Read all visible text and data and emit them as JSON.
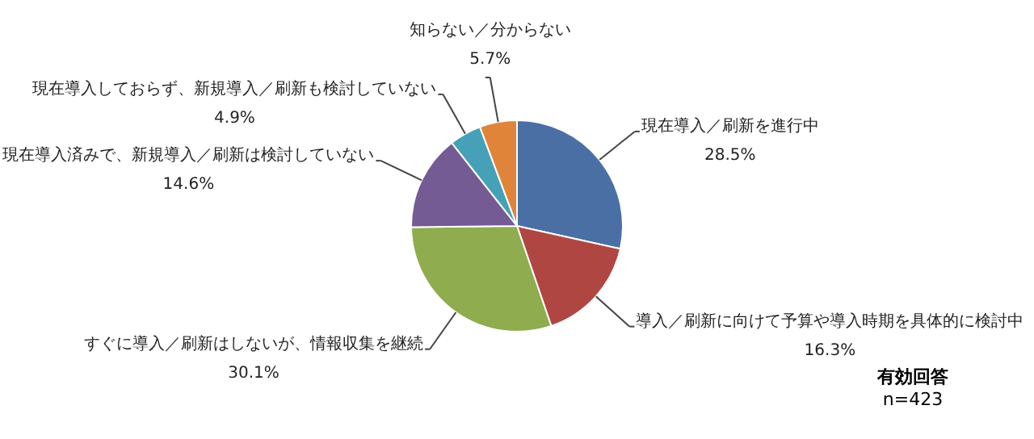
{
  "chart_data": {
    "type": "pie",
    "categories": [
      "現在導入／刷新を進行中",
      "導入／刷新に向けて予算や導入時期を具体的に検討中",
      "すぐに導入／刷新はしないが、情報収集を継続",
      "現在導入済みで、新規導入／刷新は検討していない",
      "現在導入しておらず、新規導入／刷新も検討していない",
      "知らない／分からない"
    ],
    "values": [
      28.5,
      16.3,
      30.1,
      14.6,
      4.9,
      5.7
    ],
    "value_labels": [
      "28.5%",
      "16.3%",
      "30.1%",
      "14.6%",
      "4.9%",
      "5.7%"
    ],
    "colors": [
      "#4a6fa5",
      "#b04642",
      "#8fac4f",
      "#745b94",
      "#45a0b8",
      "#e0843a"
    ],
    "annotations": [
      "有効回答",
      "n=423"
    ],
    "legend": false
  }
}
